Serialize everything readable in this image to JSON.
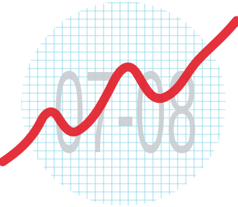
{
  "graphic": {
    "year_text": "07-08"
  }
}
